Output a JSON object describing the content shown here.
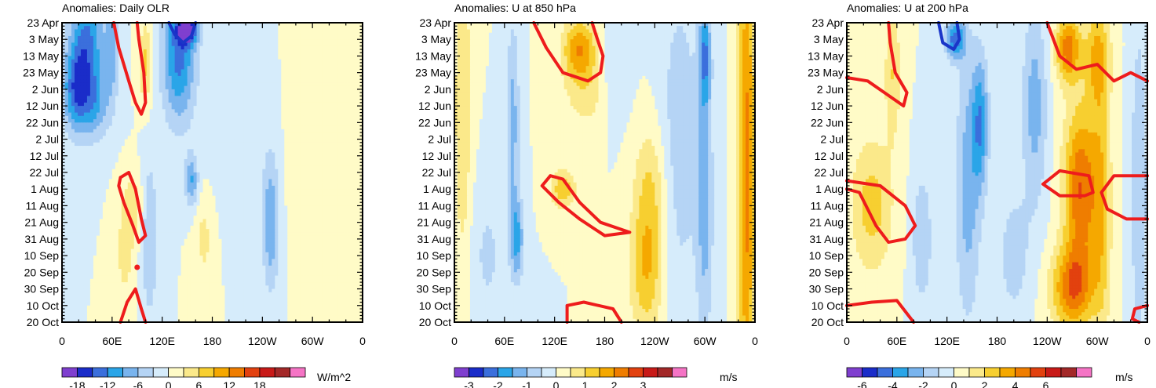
{
  "palette": {
    "neg": [
      "#7f3fcf",
      "#1a2cc9",
      "#3b6fdc",
      "#2aa5e8",
      "#79b4ee",
      "#b5d4f5",
      "#d6ecfb"
    ],
    "pos": [
      "#fffbc7",
      "#fbe98a",
      "#f7cf30",
      "#f5a800",
      "#ef7d00",
      "#e2410f",
      "#c81a18",
      "#a32828",
      "#f574c5"
    ],
    "contour_pos": "#ee1c1c",
    "contour_neg": "#1a35c8"
  },
  "chart_data": [
    {
      "type": "heatmap",
      "title": "Anomalies: Daily OLR",
      "x_ticks": [
        "0",
        "60E",
        "120E",
        "180",
        "120W",
        "60W",
        "0"
      ],
      "x_values": [
        0,
        60,
        120,
        180,
        240,
        300,
        360
      ],
      "y_ticks": [
        "23 Apr",
        "3 May",
        "13 May",
        "23 May",
        "2 Jun",
        "12 Jun",
        "22 Jun",
        "2 Jul",
        "12 Jul",
        "22 Jul",
        "1 Aug",
        "11 Aug",
        "21 Aug",
        "31 Aug",
        "10 Sep",
        "20 Sep",
        "30 Sep",
        "10 Oct",
        "20 Oct"
      ],
      "x_range": [
        0,
        360
      ],
      "y_range_days": [
        0,
        180
      ],
      "colorbar": {
        "labels": [
          "-18",
          "-12",
          "-6",
          "0",
          "6",
          "12",
          "18"
        ],
        "label_levels": [
          -18,
          -12,
          -6,
          0,
          6,
          12,
          18
        ],
        "step": 3,
        "units": "W/m^2"
      },
      "features": [
        {
          "lon": 30,
          "day": 15,
          "value": -13,
          "wl": 20,
          "wd": 40
        },
        {
          "lon": 15,
          "day": 40,
          "value": -10,
          "wl": 15,
          "wd": 25
        },
        {
          "lon": 40,
          "day": 50,
          "value": -6,
          "wl": 20,
          "wd": 20
        },
        {
          "lon": 140,
          "day": 20,
          "value": -13,
          "wl": 20,
          "wd": 40
        },
        {
          "lon": 150,
          "day": 5,
          "value": -17,
          "wl": 12,
          "wd": 8
        },
        {
          "lon": 155,
          "day": 95,
          "value": -9,
          "wl": 8,
          "wd": 15
        },
        {
          "lon": 210,
          "day": 60,
          "value": -3,
          "wl": 30,
          "wd": 40
        },
        {
          "lon": 250,
          "day": 120,
          "value": -9,
          "wl": 10,
          "wd": 40
        },
        {
          "lon": 60,
          "day": 15,
          "value": -7,
          "wl": 8,
          "wd": 30
        },
        {
          "lon": 105,
          "day": 130,
          "value": -6,
          "wl": 10,
          "wd": 50
        },
        {
          "lon": 100,
          "day": 25,
          "value": 7,
          "wl": 8,
          "wd": 25
        },
        {
          "lon": 85,
          "day": 110,
          "value": 5,
          "wl": 12,
          "wd": 20
        },
        {
          "lon": 75,
          "day": 140,
          "value": 4,
          "wl": 12,
          "wd": 30
        },
        {
          "lon": 170,
          "day": 130,
          "value": 4,
          "wl": 10,
          "wd": 25
        },
        {
          "lon": 310,
          "day": 80,
          "value": 3,
          "wl": 30,
          "wd": 60
        },
        {
          "lon": 330,
          "day": 155,
          "value": 2,
          "wl": 25,
          "wd": 20
        }
      ],
      "contours": [
        {
          "sign": "pos",
          "points": [
            [
              62,
              0
            ],
            [
              68,
              15
            ],
            [
              80,
              35
            ],
            [
              88,
              48
            ],
            [
              95,
              55
            ],
            [
              100,
              48
            ],
            [
              98,
              30
            ],
            [
              92,
              10
            ],
            [
              90,
              0
            ]
          ]
        },
        {
          "sign": "pos",
          "points": [
            [
              70,
              93
            ],
            [
              80,
              90
            ],
            [
              88,
              100
            ],
            [
              95,
              118
            ],
            [
              100,
              128
            ],
            [
              92,
              132
            ],
            [
              85,
              122
            ],
            [
              74,
              108
            ],
            [
              68,
              98
            ],
            [
              70,
              93
            ]
          ]
        },
        {
          "sign": "pos",
          "points": [
            [
              70,
              180
            ],
            [
              78,
              168
            ],
            [
              88,
              160
            ],
            [
              95,
              172
            ],
            [
              100,
              180
            ]
          ]
        },
        {
          "sign": "neg",
          "points": [
            [
              128,
              0
            ],
            [
              135,
              7
            ],
            [
              145,
              12
            ],
            [
              155,
              8
            ],
            [
              160,
              0
            ]
          ]
        }
      ],
      "dots": [
        {
          "lon": 90,
          "day": 147
        }
      ]
    },
    {
      "type": "heatmap",
      "title": "Anomalies: U at 850 hPa",
      "x_ticks": [
        "0",
        "60E",
        "120E",
        "180",
        "120W",
        "60W",
        "0"
      ],
      "x_values": [
        0,
        60,
        120,
        180,
        240,
        300,
        360
      ],
      "y_ticks": [
        "23 Apr",
        "3 May",
        "13 May",
        "23 May",
        "2 Jun",
        "12 Jun",
        "22 Jun",
        "2 Jul",
        "12 Jul",
        "22 Jul",
        "1 Aug",
        "11 Aug",
        "21 Aug",
        "31 Aug",
        "10 Sep",
        "20 Sep",
        "30 Sep",
        "10 Oct",
        "20 Oct"
      ],
      "x_range": [
        0,
        360
      ],
      "y_range_days": [
        0,
        180
      ],
      "colorbar": {
        "labels": [
          "-3",
          "-2",
          "-1",
          "0",
          "1",
          "2",
          "3"
        ],
        "label_levels": [
          -3,
          -2,
          -1,
          0,
          1,
          2,
          3
        ],
        "step": 0.5,
        "units": "m/s"
      },
      "features": [
        {
          "lon": 150,
          "day": 15,
          "value": 1.8,
          "wl": 20,
          "wd": 18
        },
        {
          "lon": 130,
          "day": 100,
          "value": 1.4,
          "wl": 15,
          "wd": 12
        },
        {
          "lon": 160,
          "day": 40,
          "value": 0.8,
          "wl": 30,
          "wd": 25
        },
        {
          "lon": 230,
          "day": 150,
          "value": 1.4,
          "wl": 20,
          "wd": 40
        },
        {
          "lon": 235,
          "day": 100,
          "value": 1.0,
          "wl": 20,
          "wd": 40
        },
        {
          "lon": 350,
          "day": 90,
          "value": 2.2,
          "wl": 10,
          "wd": 160
        },
        {
          "lon": 10,
          "day": 50,
          "value": 1.0,
          "wl": 10,
          "wd": 100
        },
        {
          "lon": 70,
          "day": 60,
          "value": -1.2,
          "wl": 8,
          "wd": 60
        },
        {
          "lon": 75,
          "day": 130,
          "value": -1.6,
          "wl": 8,
          "wd": 25
        },
        {
          "lon": 300,
          "day": 20,
          "value": -1.8,
          "wl": 7,
          "wd": 30
        },
        {
          "lon": 300,
          "day": 110,
          "value": -1.2,
          "wl": 10,
          "wd": 80
        },
        {
          "lon": 270,
          "day": 70,
          "value": -0.8,
          "wl": 25,
          "wd": 100
        },
        {
          "lon": 40,
          "day": 140,
          "value": -0.6,
          "wl": 20,
          "wd": 40
        },
        {
          "lon": 190,
          "day": 30,
          "value": -0.6,
          "wl": 20,
          "wd": 30
        }
      ],
      "contours": [
        {
          "sign": "pos",
          "points": [
            [
              95,
              0
            ],
            [
              110,
              15
            ],
            [
              130,
              30
            ],
            [
              160,
              35
            ],
            [
              175,
              30
            ],
            [
              178,
              20
            ],
            [
              170,
              8
            ],
            [
              165,
              0
            ]
          ]
        },
        {
          "sign": "pos",
          "points": [
            [
              105,
              98
            ],
            [
              115,
              92
            ],
            [
              130,
              94
            ],
            [
              150,
              108
            ],
            [
              175,
              120
            ],
            [
              210,
              126
            ],
            [
              180,
              128
            ],
            [
              150,
              118
            ],
            [
              125,
              108
            ],
            [
              105,
              98
            ]
          ]
        },
        {
          "sign": "pos",
          "points": [
            [
              135,
              180
            ],
            [
              135,
              170
            ],
            [
              155,
              168
            ],
            [
              190,
              172
            ],
            [
              200,
              180
            ]
          ]
        }
      ],
      "dots": []
    },
    {
      "type": "heatmap",
      "title": "Anomalies: U at 200 hPa",
      "x_ticks": [
        "0",
        "60E",
        "120E",
        "180",
        "120W",
        "60W",
        "0"
      ],
      "x_values": [
        0,
        60,
        120,
        180,
        240,
        300,
        360
      ],
      "y_ticks": [
        "23 Apr",
        "3 May",
        "13 May",
        "23 May",
        "2 Jun",
        "12 Jun",
        "22 Jun",
        "2 Jul",
        "12 Jul",
        "22 Jul",
        "1 Aug",
        "11 Aug",
        "21 Aug",
        "31 Aug",
        "10 Sep",
        "20 Sep",
        "30 Sep",
        "10 Oct",
        "20 Oct"
      ],
      "x_range": [
        0,
        360
      ],
      "y_range_days": [
        0,
        180
      ],
      "colorbar": {
        "labels": [
          "-6",
          "-4",
          "-2",
          "0",
          "2",
          "4",
          "6"
        ],
        "label_levels": [
          -6,
          -4,
          -2,
          0,
          2,
          4,
          6
        ],
        "step": 1,
        "units": "m/s"
      },
      "features": [
        {
          "lon": 265,
          "day": 15,
          "value": 4.5,
          "wl": 15,
          "wd": 20
        },
        {
          "lon": 300,
          "day": 20,
          "value": 3.0,
          "wl": 15,
          "wd": 30
        },
        {
          "lon": 280,
          "day": 100,
          "value": 5.0,
          "wl": 20,
          "wd": 50
        },
        {
          "lon": 270,
          "day": 160,
          "value": 4.5,
          "wl": 25,
          "wd": 25
        },
        {
          "lon": 305,
          "day": 110,
          "value": 2.5,
          "wl": 12,
          "wd": 80
        },
        {
          "lon": 30,
          "day": 110,
          "value": 2.5,
          "wl": 25,
          "wd": 40
        },
        {
          "lon": 55,
          "day": 30,
          "value": 2.0,
          "wl": 10,
          "wd": 40
        },
        {
          "lon": 130,
          "day": 10,
          "value": -4.5,
          "wl": 12,
          "wd": 12
        },
        {
          "lon": 160,
          "day": 60,
          "value": -3.5,
          "wl": 10,
          "wd": 40
        },
        {
          "lon": 145,
          "day": 100,
          "value": -2.5,
          "wl": 15,
          "wd": 80
        },
        {
          "lon": 225,
          "day": 50,
          "value": -2.5,
          "wl": 15,
          "wd": 60
        },
        {
          "lon": 350,
          "day": 100,
          "value": -2.0,
          "wl": 10,
          "wd": 100
        },
        {
          "lon": 90,
          "day": 130,
          "value": -2.0,
          "wl": 12,
          "wd": 40
        },
        {
          "lon": 200,
          "day": 140,
          "value": -1.5,
          "wl": 20,
          "wd": 40
        }
      ],
      "contours": [
        {
          "sign": "pos",
          "points": [
            [
              0,
              33
            ],
            [
              25,
              35
            ],
            [
              45,
              42
            ],
            [
              68,
              50
            ],
            [
              72,
              42
            ],
            [
              58,
              30
            ],
            [
              52,
              12
            ],
            [
              50,
              0
            ]
          ]
        },
        {
          "sign": "pos",
          "points": [
            [
              0,
              95
            ],
            [
              40,
              98
            ],
            [
              70,
              110
            ],
            [
              82,
              122
            ],
            [
              70,
              130
            ],
            [
              50,
              132
            ],
            [
              35,
              122
            ],
            [
              15,
              102
            ],
            [
              0,
              100
            ]
          ]
        },
        {
          "sign": "pos",
          "points": [
            [
              0,
              170
            ],
            [
              30,
              168
            ],
            [
              60,
              167
            ],
            [
              80,
              180
            ]
          ]
        },
        {
          "sign": "pos",
          "points": [
            [
              240,
              0
            ],
            [
              255,
              20
            ],
            [
              275,
              28
            ],
            [
              300,
              25
            ],
            [
              320,
              35
            ],
            [
              340,
              30
            ],
            [
              360,
              35
            ]
          ]
        },
        {
          "sign": "pos",
          "points": [
            [
              235,
              97
            ],
            [
              255,
              89
            ],
            [
              290,
              92
            ],
            [
              295,
              102
            ],
            [
              285,
              104
            ],
            [
              255,
              104
            ],
            [
              235,
              97
            ]
          ]
        },
        {
          "sign": "pos",
          "points": [
            [
              360,
              92
            ],
            [
              320,
              92
            ],
            [
              305,
              102
            ],
            [
              312,
              112
            ],
            [
              335,
              118
            ],
            [
              360,
              118
            ]
          ]
        },
        {
          "sign": "pos",
          "points": [
            [
              360,
              170
            ],
            [
              345,
              172
            ],
            [
              342,
              178
            ],
            [
              350,
              180
            ]
          ]
        },
        {
          "sign": "neg",
          "points": [
            [
              110,
              0
            ],
            [
              115,
              12
            ],
            [
              128,
              16
            ],
            [
              135,
              10
            ],
            [
              132,
              0
            ]
          ]
        }
      ],
      "dots": []
    }
  ]
}
